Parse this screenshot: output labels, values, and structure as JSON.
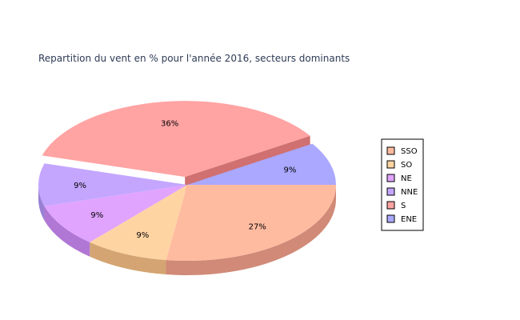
{
  "chart_data": {
    "type": "pie",
    "title": "Repartition du vent en % pour l'année 2016, secteurs dominants",
    "slices": [
      {
        "label": "SSO",
        "value": 27,
        "display": "27%",
        "color": "#ffbba0",
        "side": "#d08a77"
      },
      {
        "label": "SO",
        "value": 9,
        "display": "9%",
        "color": "#ffd4a3",
        "side": "#d4a572"
      },
      {
        "label": "NE",
        "value": 9,
        "display": "9%",
        "color": "#e0a4ff",
        "side": "#b077d4"
      },
      {
        "label": "NNE",
        "value": 9,
        "display": "9%",
        "color": "#c4a6ff",
        "side": "#9a80d4"
      },
      {
        "label": "S",
        "value": 36,
        "display": "36%",
        "color": "#ffa3a3",
        "side": "#d07070",
        "exploded": true
      },
      {
        "label": "ENE",
        "value": 9,
        "display": "9%",
        "color": "#aaa8ff",
        "side": "#8583d4"
      }
    ],
    "legend_position": "right",
    "style": "3d"
  }
}
